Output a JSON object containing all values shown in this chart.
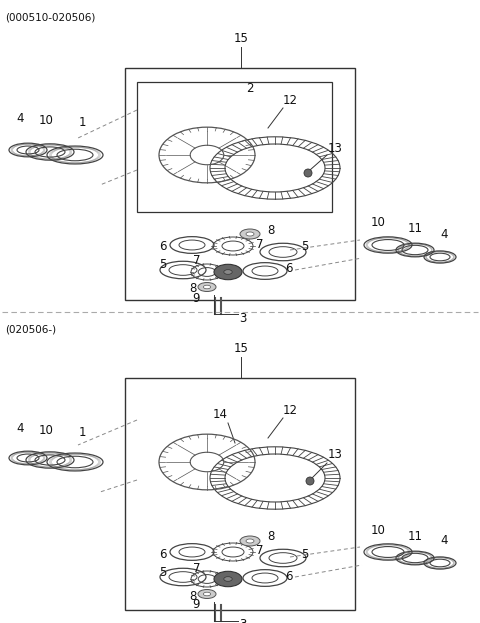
{
  "title_top": "(000510-020506)",
  "title_bottom": "(020506-)",
  "bg_color": "#ffffff",
  "figsize": [
    4.8,
    6.23
  ],
  "dpi": 100
}
